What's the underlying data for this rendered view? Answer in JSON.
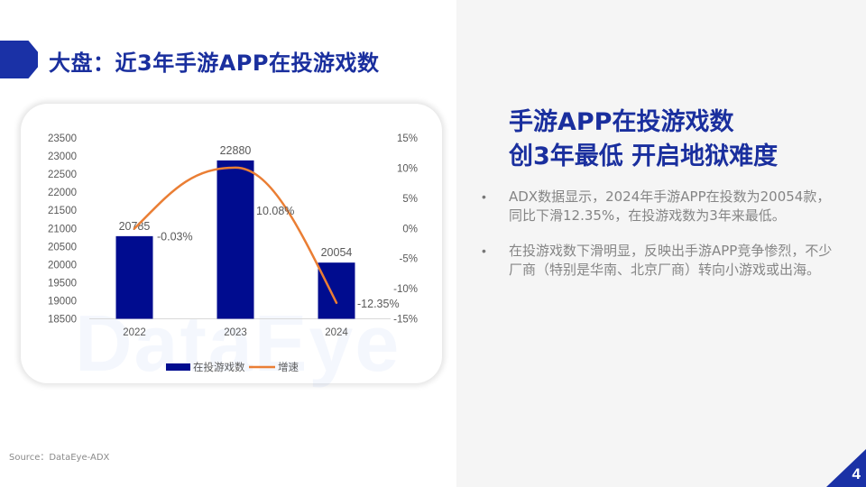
{
  "slide": {
    "title": "大盘：近3年手游APP在投游戏数",
    "headline_line1": "手游APP在投游戏数",
    "headline_line2": "创3年最低  开启地狱难度",
    "bullets": [
      "ADX数据显示，2024年手游APP在投数为20054款，同比下滑12.35%，在投游戏数为3年来最低。",
      "在投游戏数下滑明显，反映出手游APP竞争惨烈，不少厂商（特别是华南、北京厂商）转向小游戏或出海。"
    ],
    "bullet_marker": "•",
    "source": "Source：DataEye-ADX",
    "page_number": "4",
    "watermark": "DataEye"
  },
  "colors": {
    "brand_blue": "#1a31a6",
    "bar_navy": "#000c8f",
    "line_orange": "#ea7e34",
    "text_gray": "#595959"
  },
  "chart_data": {
    "type": "bar+line",
    "title": "",
    "categories": [
      "2022",
      "2023",
      "2024"
    ],
    "series": [
      {
        "name": "在投游戏数",
        "type": "bar",
        "axis": "left",
        "values": [
          20785,
          22880,
          20054
        ],
        "labels": [
          "20785",
          "22880",
          "20054"
        ]
      },
      {
        "name": "增速",
        "type": "line",
        "axis": "right",
        "values": [
          -0.03,
          10.08,
          -12.35
        ],
        "labels": [
          "-0.03%",
          "10.08%",
          "-12.35%"
        ]
      }
    ],
    "left_axis": {
      "min": 18500,
      "max": 23500,
      "step": 500,
      "ticks": [
        "23500",
        "23000",
        "22500",
        "22000",
        "21500",
        "21000",
        "20500",
        "20000",
        "19500",
        "19000",
        "18500"
      ]
    },
    "right_axis": {
      "min": -15,
      "max": 15,
      "step": 5,
      "ticks": [
        "15%",
        "10%",
        "5%",
        "0%",
        "-5%",
        "-10%",
        "-15%"
      ]
    },
    "legend": [
      "在投游戏数",
      "增速"
    ],
    "legend_position": "bottom",
    "grid": false
  }
}
